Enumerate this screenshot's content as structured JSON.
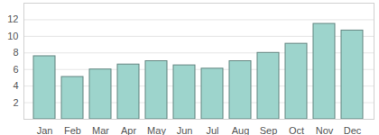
{
  "chart_data": {
    "type": "bar",
    "categories": [
      "Jan",
      "Feb",
      "Mar",
      "Apr",
      "May",
      "Jun",
      "Jul",
      "Aug",
      "Sep",
      "Oct",
      "Nov",
      "Dec"
    ],
    "values": [
      7.6,
      5.1,
      6.0,
      6.6,
      7.0,
      6.5,
      6.1,
      7.0,
      8.0,
      9.1,
      11.5,
      10.7
    ],
    "color": "#9dd4cc",
    "ylim": [
      0,
      14
    ],
    "yticks": [
      2,
      4,
      6,
      8,
      10,
      12
    ],
    "grid": true
  }
}
